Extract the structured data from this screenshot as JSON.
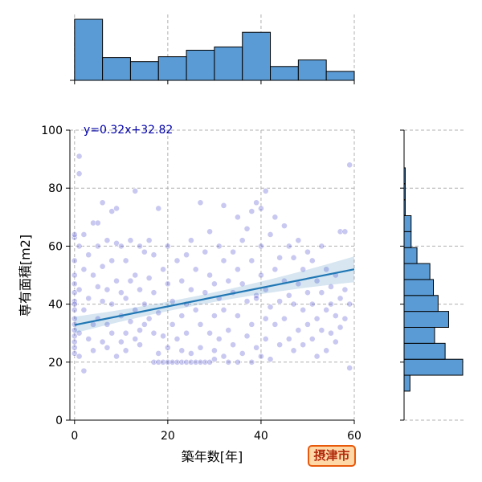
{
  "chart_data": {
    "type": "scatter",
    "subtype": "jointplot",
    "xlabel": "築年数[年]",
    "ylabel": "専有面積[m2]",
    "xlim": [
      -1,
      60
    ],
    "ylim": [
      0,
      100
    ],
    "x_ticks": [
      "0",
      "20",
      "40",
      "60"
    ],
    "y_ticks": [
      "0",
      "20",
      "40",
      "60",
      "80",
      "100"
    ],
    "grid": true,
    "regression": {
      "equation_label": "y=0.32x+32.82",
      "slope": 0.32,
      "intercept": 32.82,
      "line_color": "#1f77b4"
    },
    "badge_label": "摂津市",
    "point_color": "#3b3bcc",
    "hist_color": "#5b9bd5",
    "x_hist": {
      "bins": [
        0,
        6,
        12,
        18,
        24,
        30,
        36,
        42,
        48,
        54,
        60
      ],
      "counts": [
        75,
        28,
        23,
        29,
        37,
        41,
        59,
        17,
        25,
        11
      ]
    },
    "y_hist": {
      "bins": [
        10,
        15.5,
        21,
        26.5,
        32,
        37.5,
        43,
        48.5,
        54,
        59.5,
        65,
        70.5,
        76,
        81.5,
        87
      ],
      "counts": [
        5,
        50,
        35,
        26,
        38,
        29,
        25,
        22,
        11,
        6,
        6,
        1,
        1,
        1
      ]
    },
    "points": [
      [
        0,
        23
      ],
      [
        0,
        27
      ],
      [
        0,
        31
      ],
      [
        0,
        35
      ],
      [
        0,
        38
      ],
      [
        0,
        41
      ],
      [
        0,
        44
      ],
      [
        0,
        47
      ],
      [
        0,
        50
      ],
      [
        0,
        55
      ],
      [
        0,
        63
      ],
      [
        0,
        64
      ],
      [
        0,
        25
      ],
      [
        0,
        33
      ],
      [
        0,
        40
      ],
      [
        0,
        29
      ],
      [
        1,
        91
      ],
      [
        1,
        85
      ],
      [
        1,
        60
      ],
      [
        1,
        45
      ],
      [
        1,
        30
      ],
      [
        1,
        22
      ],
      [
        2,
        17
      ],
      [
        2,
        64
      ],
      [
        2,
        38
      ],
      [
        2,
        52
      ],
      [
        3,
        42
      ],
      [
        3,
        57
      ],
      [
        3,
        28
      ],
      [
        4,
        68
      ],
      [
        4,
        50
      ],
      [
        4,
        33
      ],
      [
        4,
        24
      ],
      [
        5,
        68
      ],
      [
        5,
        46
      ],
      [
        5,
        35
      ],
      [
        5,
        60
      ],
      [
        6,
        53
      ],
      [
        6,
        41
      ],
      [
        6,
        27
      ],
      [
        6,
        75
      ],
      [
        7,
        62
      ],
      [
        7,
        45
      ],
      [
        7,
        33
      ],
      [
        7,
        25
      ],
      [
        8,
        72
      ],
      [
        8,
        55
      ],
      [
        8,
        40
      ],
      [
        8,
        30
      ],
      [
        9,
        73
      ],
      [
        9,
        61
      ],
      [
        9,
        48
      ],
      [
        9,
        22
      ],
      [
        10,
        60
      ],
      [
        10,
        44
      ],
      [
        10,
        36
      ],
      [
        10,
        27
      ],
      [
        11,
        55
      ],
      [
        11,
        42
      ],
      [
        11,
        30
      ],
      [
        11,
        24
      ],
      [
        12,
        62
      ],
      [
        12,
        48
      ],
      [
        12,
        34
      ],
      [
        13,
        79
      ],
      [
        13,
        50
      ],
      [
        13,
        38
      ],
      [
        13,
        28
      ],
      [
        14,
        60
      ],
      [
        14,
        45
      ],
      [
        14,
        31
      ],
      [
        14,
        26
      ],
      [
        15,
        58
      ],
      [
        15,
        40
      ],
      [
        15,
        33
      ],
      [
        16,
        62
      ],
      [
        16,
        49
      ],
      [
        16,
        35
      ],
      [
        17,
        20
      ],
      [
        17,
        57
      ],
      [
        17,
        44
      ],
      [
        17,
        30
      ],
      [
        18,
        73
      ],
      [
        18,
        20
      ],
      [
        18,
        23
      ],
      [
        18,
        37
      ],
      [
        19,
        20
      ],
      [
        19,
        52
      ],
      [
        19,
        29
      ],
      [
        20,
        20
      ],
      [
        20,
        47
      ],
      [
        20,
        25
      ],
      [
        20,
        60
      ],
      [
        21,
        20
      ],
      [
        21,
        33
      ],
      [
        21,
        41
      ],
      [
        22,
        20
      ],
      [
        22,
        55
      ],
      [
        22,
        28
      ],
      [
        23,
        20
      ],
      [
        23,
        48
      ],
      [
        23,
        36
      ],
      [
        23,
        24
      ],
      [
        24,
        20
      ],
      [
        24,
        57
      ],
      [
        24,
        30
      ],
      [
        24,
        40
      ],
      [
        25,
        20
      ],
      [
        25,
        62
      ],
      [
        25,
        45
      ],
      [
        25,
        23
      ],
      [
        26,
        20
      ],
      [
        26,
        38
      ],
      [
        26,
        52
      ],
      [
        27,
        75
      ],
      [
        27,
        20
      ],
      [
        27,
        25
      ],
      [
        27,
        33
      ],
      [
        28,
        20
      ],
      [
        28,
        58
      ],
      [
        28,
        44
      ],
      [
        29,
        20
      ],
      [
        29,
        30
      ],
      [
        29,
        50
      ],
      [
        29,
        65
      ],
      [
        30,
        21
      ],
      [
        30,
        47
      ],
      [
        30,
        36
      ],
      [
        30,
        24
      ],
      [
        31,
        60
      ],
      [
        31,
        42
      ],
      [
        31,
        28
      ],
      [
        32,
        74
      ],
      [
        32,
        55
      ],
      [
        32,
        22
      ],
      [
        32,
        38
      ],
      [
        33,
        48
      ],
      [
        33,
        31
      ],
      [
        33,
        20
      ],
      [
        34,
        58
      ],
      [
        34,
        44
      ],
      [
        34,
        26
      ],
      [
        35,
        70
      ],
      [
        35,
        52
      ],
      [
        35,
        36
      ],
      [
        35,
        20
      ],
      [
        36,
        62
      ],
      [
        36,
        47
      ],
      [
        36,
        23
      ],
      [
        37,
        66
      ],
      [
        37,
        41
      ],
      [
        37,
        29
      ],
      [
        38,
        72
      ],
      [
        38,
        55
      ],
      [
        38,
        20
      ],
      [
        38,
        33
      ],
      [
        39,
        75
      ],
      [
        39,
        43
      ],
      [
        39,
        42
      ],
      [
        39,
        25
      ],
      [
        40,
        73
      ],
      [
        40,
        60
      ],
      [
        40,
        50
      ],
      [
        40,
        22
      ],
      [
        41,
        79
      ],
      [
        41,
        45
      ],
      [
        41,
        35
      ],
      [
        41,
        28
      ],
      [
        42,
        64
      ],
      [
        42,
        39
      ],
      [
        42,
        21
      ],
      [
        43,
        70
      ],
      [
        43,
        52
      ],
      [
        43,
        33
      ],
      [
        44,
        56
      ],
      [
        44,
        41
      ],
      [
        44,
        26
      ],
      [
        45,
        67
      ],
      [
        45,
        48
      ],
      [
        45,
        35
      ],
      [
        46,
        60
      ],
      [
        46,
        43
      ],
      [
        46,
        28
      ],
      [
        47,
        56
      ],
      [
        47,
        40
      ],
      [
        47,
        24
      ],
      [
        48,
        62
      ],
      [
        48,
        47
      ],
      [
        48,
        31
      ],
      [
        49,
        52
      ],
      [
        49,
        38
      ],
      [
        49,
        26
      ],
      [
        50,
        58
      ],
      [
        50,
        44
      ],
      [
        50,
        33
      ],
      [
        51,
        55
      ],
      [
        51,
        40
      ],
      [
        51,
        28
      ],
      [
        52,
        48
      ],
      [
        52,
        35
      ],
      [
        52,
        22
      ],
      [
        53,
        60
      ],
      [
        53,
        44
      ],
      [
        53,
        31
      ],
      [
        54,
        52
      ],
      [
        54,
        38
      ],
      [
        54,
        24
      ],
      [
        55,
        46
      ],
      [
        55,
        40
      ],
      [
        55,
        30
      ],
      [
        56,
        50
      ],
      [
        56,
        36
      ],
      [
        56,
        27
      ],
      [
        57,
        65
      ],
      [
        57,
        42
      ],
      [
        57,
        32
      ],
      [
        58,
        65
      ],
      [
        58,
        45
      ],
      [
        58,
        35
      ],
      [
        59,
        88
      ],
      [
        59,
        18
      ],
      [
        59,
        40
      ]
    ]
  }
}
